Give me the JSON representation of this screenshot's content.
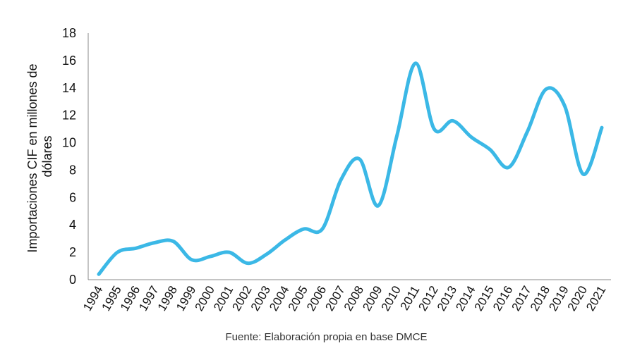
{
  "chart_data": {
    "type": "line",
    "title": "",
    "xlabel": "",
    "ylabel": "Importaciones CIF en millones de dólares",
    "ylabel_lines": [
      "Importaciones CIF en millones de",
      "dólares"
    ],
    "ylim": [
      0,
      18
    ],
    "yticks": [
      0,
      2,
      4,
      6,
      8,
      10,
      12,
      14,
      16,
      18
    ],
    "grid": false,
    "smooth": true,
    "color": "#3BB8E6",
    "x": [
      "1994",
      "1995",
      "1996",
      "1997",
      "1998",
      "1999",
      "2000",
      "2001",
      "2002",
      "2003",
      "2004",
      "2005",
      "2006",
      "2007",
      "2008",
      "2009",
      "2010",
      "2011",
      "2012",
      "2013",
      "2014",
      "2015",
      "2016",
      "2017",
      "2018",
      "2019",
      "2020",
      "2021"
    ],
    "series": [
      {
        "values": [
          0.4,
          2.0,
          2.3,
          2.7,
          2.8,
          1.45,
          1.7,
          2.0,
          1.2,
          1.85,
          2.9,
          3.7,
          3.7,
          7.3,
          8.8,
          5.4,
          10.5,
          15.8,
          11.0,
          11.6,
          10.4,
          9.5,
          8.2,
          10.8,
          13.9,
          12.7,
          7.7,
          11.1
        ]
      }
    ]
  },
  "source": "Fuente: Elaboración propia en base DMCE"
}
